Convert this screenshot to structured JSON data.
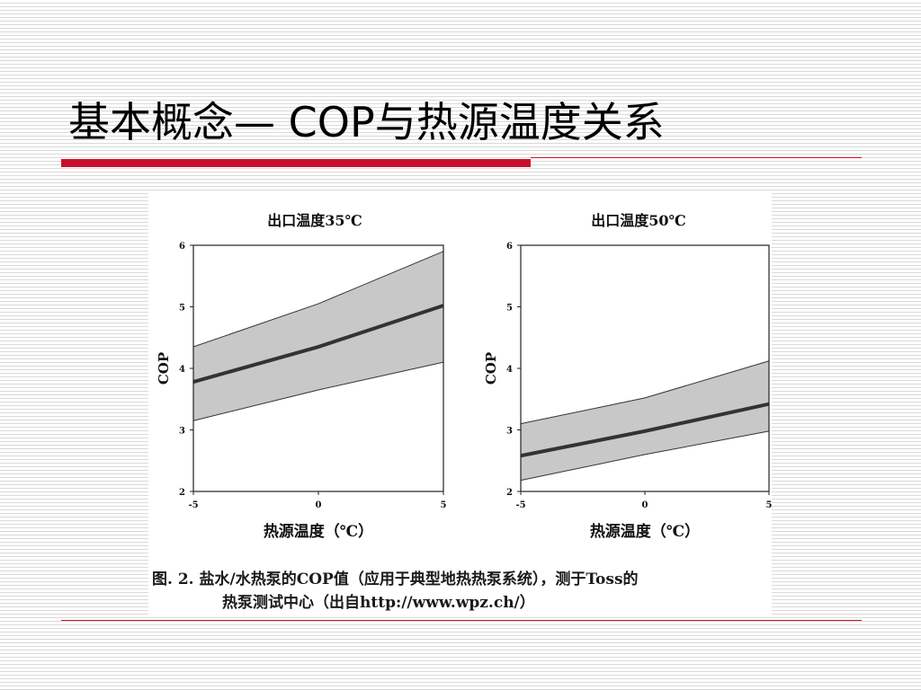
{
  "slide": {
    "title": "基本概念— COP与热源温度关系",
    "accent_color": "#c8102e"
  },
  "figure": {
    "caption_line1": "图. 2. 盐水/水热泵的COP值（应用于典型地热热泵系统），测于Toss的",
    "caption_line2": "热泵测试中心（出自http://www.wpz.ch/）"
  },
  "chart_data": [
    {
      "type": "area",
      "title": "出口温度35℃",
      "xlabel": "热源温度（℃）",
      "ylabel": "COP",
      "xlim": [
        -5,
        5
      ],
      "ylim": [
        2,
        6
      ],
      "x_ticks": [
        -5,
        0,
        5
      ],
      "y_ticks": [
        2,
        3,
        4,
        5,
        6
      ],
      "grid": false,
      "band_color": "#c8c8c8",
      "line_color": "#000000",
      "series": [
        {
          "role": "upper",
          "x": [
            -5,
            0,
            5
          ],
          "y": [
            4.35,
            5.05,
            5.9
          ]
        },
        {
          "role": "mean",
          "x": [
            -5,
            0,
            5
          ],
          "y": [
            3.78,
            4.35,
            5.02
          ]
        },
        {
          "role": "lower",
          "x": [
            -5,
            0,
            5
          ],
          "y": [
            3.15,
            3.65,
            4.1
          ]
        }
      ]
    },
    {
      "type": "area",
      "title": "出口温度50℃",
      "xlabel": "热源温度（℃）",
      "ylabel": "COP",
      "xlim": [
        -5,
        5
      ],
      "ylim": [
        2,
        6
      ],
      "x_ticks": [
        -5,
        0,
        5
      ],
      "y_ticks": [
        2,
        3,
        4,
        5,
        6
      ],
      "grid": false,
      "band_color": "#c8c8c8",
      "line_color": "#000000",
      "series": [
        {
          "role": "upper",
          "x": [
            -5,
            0,
            5
          ],
          "y": [
            3.1,
            3.52,
            4.12
          ]
        },
        {
          "role": "mean",
          "x": [
            -5,
            0,
            5
          ],
          "y": [
            2.58,
            2.98,
            3.42
          ]
        },
        {
          "role": "lower",
          "x": [
            -5,
            0,
            5
          ],
          "y": [
            2.18,
            2.6,
            2.98
          ]
        }
      ]
    }
  ]
}
